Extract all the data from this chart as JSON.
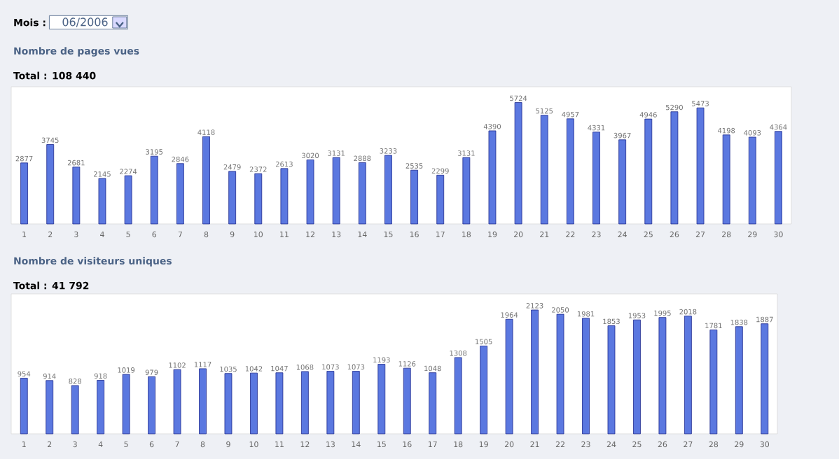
{
  "chart_data": [
    {
      "type": "bar",
      "title": "Nombre de pages vues",
      "subtitle": "Total : 108 440",
      "annotations": [
        "Mois :",
        "06/2006"
      ],
      "data_labels": true,
      "tick_labels": "x",
      "color": "#5b78e0",
      "categories": [
        "1",
        "2",
        "3",
        "4",
        "5",
        "6",
        "7",
        "8",
        "9",
        "10",
        "11",
        "12",
        "13",
        "14",
        "15",
        "16",
        "17",
        "18",
        "19",
        "20",
        "21",
        "22",
        "23",
        "24",
        "25",
        "26",
        "27",
        "28",
        "29",
        "30"
      ],
      "values": [
        2877,
        3745,
        2681,
        2145,
        2274,
        3195,
        2846,
        4118,
        2479,
        2372,
        2613,
        3020,
        3131,
        2888,
        3233,
        2535,
        2299,
        3131,
        4390,
        5724,
        5125,
        4957,
        4331,
        3967,
        4946,
        5290,
        5473,
        4198,
        4093,
        4364
      ]
    },
    {
      "type": "bar",
      "title": "Nombre de visiteurs uniques",
      "subtitle": "Total : 41 792",
      "data_labels": true,
      "tick_labels": "x",
      "color": "#5b78e0",
      "categories": [
        "1",
        "2",
        "3",
        "4",
        "5",
        "6",
        "7",
        "8",
        "9",
        "10",
        "11",
        "12",
        "13",
        "14",
        "15",
        "16",
        "17",
        "18",
        "19",
        "20",
        "21",
        "22",
        "23",
        "24",
        "25",
        "26",
        "27",
        "28",
        "29",
        "30"
      ],
      "values": [
        954,
        914,
        828,
        918,
        1019,
        979,
        1102,
        1117,
        1035,
        1042,
        1047,
        1068,
        1073,
        1073,
        1193,
        1126,
        1048,
        1308,
        1505,
        1964,
        2123,
        2050,
        1981,
        1853,
        1953,
        1995,
        2018,
        1781,
        1838,
        1887
      ]
    }
  ]
}
